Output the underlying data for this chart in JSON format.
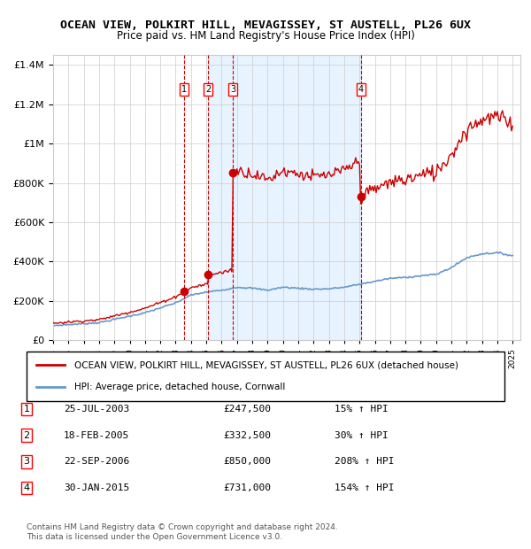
{
  "title": "OCEAN VIEW, POLKIRT HILL, MEVAGISSEY, ST AUSTELL, PL26 6UX",
  "subtitle": "Price paid vs. HM Land Registry's House Price Index (HPI)",
  "legend_line1": "OCEAN VIEW, POLKIRT HILL, MEVAGISSEY, ST AUSTELL, PL26 6UX (detached house)",
  "legend_line2": "HPI: Average price, detached house, Cornwall",
  "footer": "Contains HM Land Registry data © Crown copyright and database right 2024.\nThis data is licensed under the Open Government Licence v3.0.",
  "transactions": [
    {
      "num": 1,
      "date": "25-JUL-2003",
      "price": 247500,
      "year": 2003.56,
      "pct": "15%",
      "dir": "↑"
    },
    {
      "num": 2,
      "date": "18-FEB-2005",
      "price": 332500,
      "year": 2005.12,
      "pct": "30%",
      "dir": "↑"
    },
    {
      "num": 3,
      "date": "22-SEP-2006",
      "price": 850000,
      "year": 2006.72,
      "pct": "208%",
      "dir": "↑"
    },
    {
      "num": 4,
      "date": "30-JAN-2015",
      "price": 731000,
      "year": 2015.08,
      "pct": "154%",
      "dir": "↑"
    }
  ],
  "ylim": [
    0,
    1450000
  ],
  "xlim_start": 1995,
  "xlim_end": 2025.5,
  "red_color": "#cc0000",
  "blue_color": "#6699cc",
  "shade_color": "#ddeeff",
  "grid_color": "#cccccc",
  "background_color": "#ffffff"
}
